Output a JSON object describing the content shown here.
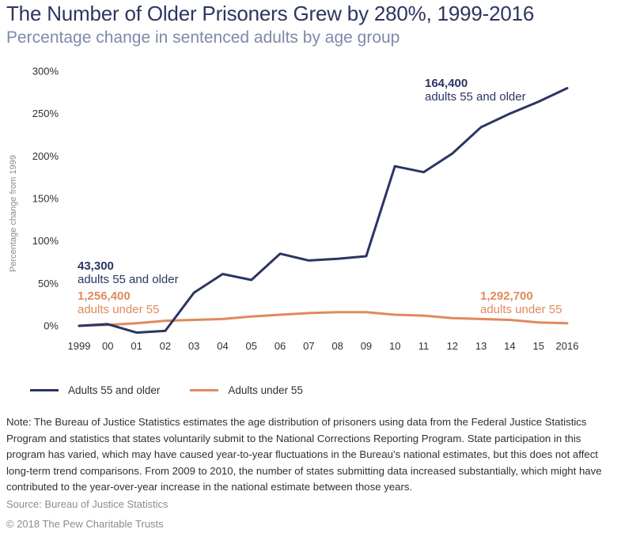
{
  "header": {
    "title": "The Number of Older Prisoners Grew by 280%, 1999-2016",
    "subtitle": "Percentage change in sentenced adults by age group"
  },
  "chart_data": {
    "type": "line",
    "title": "The Number of Older Prisoners Grew by 280%, 1999-2016",
    "subtitle": "Percentage change in sentenced adults by age group",
    "xlabel": "",
    "ylabel": "Percentage change from 1999",
    "ylim": [
      0,
      300
    ],
    "yticks": [
      0,
      50,
      100,
      150,
      200,
      250,
      300
    ],
    "ytick_labels": [
      "0%",
      "50%",
      "100%",
      "150%",
      "200%",
      "250%",
      "300%"
    ],
    "categories": [
      "1999",
      "00",
      "01",
      "02",
      "03",
      "04",
      "05",
      "06",
      "07",
      "08",
      "09",
      "10",
      "11",
      "12",
      "13",
      "14",
      "15",
      "2016"
    ],
    "series": [
      {
        "name": "Adults 55 and older",
        "color": "#2b3564",
        "values": [
          0,
          2,
          -8,
          -6,
          39,
          61,
          54,
          85,
          77,
          79,
          82,
          188,
          181,
          203,
          234,
          250,
          264,
          280
        ]
      },
      {
        "name": "Adults under 55",
        "color": "#e08a5c",
        "values": [
          0,
          1,
          3,
          6,
          7,
          8,
          11,
          13,
          15,
          16,
          16,
          13,
          12,
          9,
          8,
          7,
          4,
          3
        ]
      }
    ],
    "annotations": [
      {
        "series": "Adults 55 and older",
        "position": "start",
        "number": "43,300",
        "label": "adults 55 and older",
        "color": "#2b3564"
      },
      {
        "series": "Adults under 55",
        "position": "start",
        "number": "1,256,400",
        "label": "adults under 55",
        "color": "#e08a5c"
      },
      {
        "series": "Adults 55 and older",
        "position": "end",
        "number": "164,400",
        "label": "adults 55 and older",
        "color": "#2b3564"
      },
      {
        "series": "Adults under 55",
        "position": "end",
        "number": "1,292,700",
        "label": "adults under 55",
        "color": "#e08a5c"
      }
    ],
    "legend": "bottom-left",
    "grid": false
  },
  "footer": {
    "note": "Note: The Bureau of Justice Statistics estimates the age distribution of prisoners using data from the Federal Justice Statistics Program and statistics that states voluntarily submit to the National Corrections Reporting Program. State participation in this program has varied, which may have caused year-to-year fluctuations in the Bureau’s national estimates, but this does not affect long-term trend comparisons. From 2009 to 2010, the number of states submitting data increased substantially, which might have contributed to the year-over-year increase in the national estimate between those years.",
    "source": "Source: Bureau of Justice Statistics",
    "copyright": "© 2018 The Pew Charitable Trusts"
  }
}
